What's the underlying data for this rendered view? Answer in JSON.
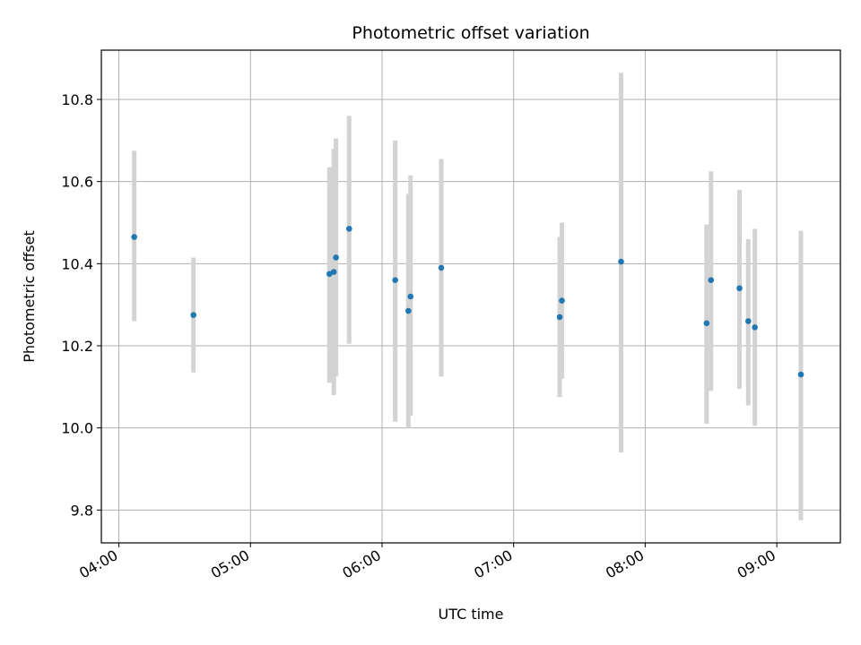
{
  "chart_data": {
    "type": "scatter",
    "title": "Photometric offset variation",
    "xlabel": "UTC time",
    "ylabel": "Photometric offset",
    "x_axis_type": "time",
    "xlim": [
      "03:52",
      "09:29"
    ],
    "ylim": [
      9.72,
      10.92
    ],
    "x_ticks": [
      "04:00",
      "05:00",
      "06:00",
      "07:00",
      "08:00",
      "09:00"
    ],
    "y_ticks": [
      9.8,
      10.0,
      10.2,
      10.4,
      10.6,
      10.8
    ],
    "y_tick_labels": [
      "9.8",
      "10.0",
      "10.2",
      "10.4",
      "10.6",
      "10.8"
    ],
    "grid": true,
    "legend": "none",
    "point_color": "#1f77b4",
    "errorbar_color": "#d3d3d3",
    "points": [
      {
        "x": "04:07",
        "y": 10.465,
        "low": 10.26,
        "high": 10.675
      },
      {
        "x": "04:34",
        "y": 10.275,
        "low": 10.135,
        "high": 10.415
      },
      {
        "x": "05:36",
        "y": 10.375,
        "low": 10.11,
        "high": 10.635
      },
      {
        "x": "05:38",
        "y": 10.38,
        "low": 10.08,
        "high": 10.68
      },
      {
        "x": "05:39",
        "y": 10.415,
        "low": 10.125,
        "high": 10.705
      },
      {
        "x": "05:45",
        "y": 10.485,
        "low": 10.205,
        "high": 10.76
      },
      {
        "x": "06:06",
        "y": 10.36,
        "low": 10.015,
        "high": 10.7
      },
      {
        "x": "06:12",
        "y": 10.285,
        "low": 10.0,
        "high": 10.57
      },
      {
        "x": "06:13",
        "y": 10.32,
        "low": 10.03,
        "high": 10.615
      },
      {
        "x": "06:27",
        "y": 10.39,
        "low": 10.125,
        "high": 10.655
      },
      {
        "x": "07:21",
        "y": 10.27,
        "low": 10.075,
        "high": 10.465
      },
      {
        "x": "07:22",
        "y": 10.31,
        "low": 10.12,
        "high": 10.5
      },
      {
        "x": "07:49",
        "y": 10.405,
        "low": 9.94,
        "high": 10.865
      },
      {
        "x": "08:28",
        "y": 10.255,
        "low": 10.01,
        "high": 10.495
      },
      {
        "x": "08:30",
        "y": 10.36,
        "low": 10.09,
        "high": 10.625
      },
      {
        "x": "08:43",
        "y": 10.34,
        "low": 10.095,
        "high": 10.58
      },
      {
        "x": "08:47",
        "y": 10.26,
        "low": 10.055,
        "high": 10.46
      },
      {
        "x": "08:50",
        "y": 10.245,
        "low": 10.005,
        "high": 10.485
      },
      {
        "x": "09:11",
        "y": 10.13,
        "low": 9.775,
        "high": 10.48
      }
    ]
  }
}
